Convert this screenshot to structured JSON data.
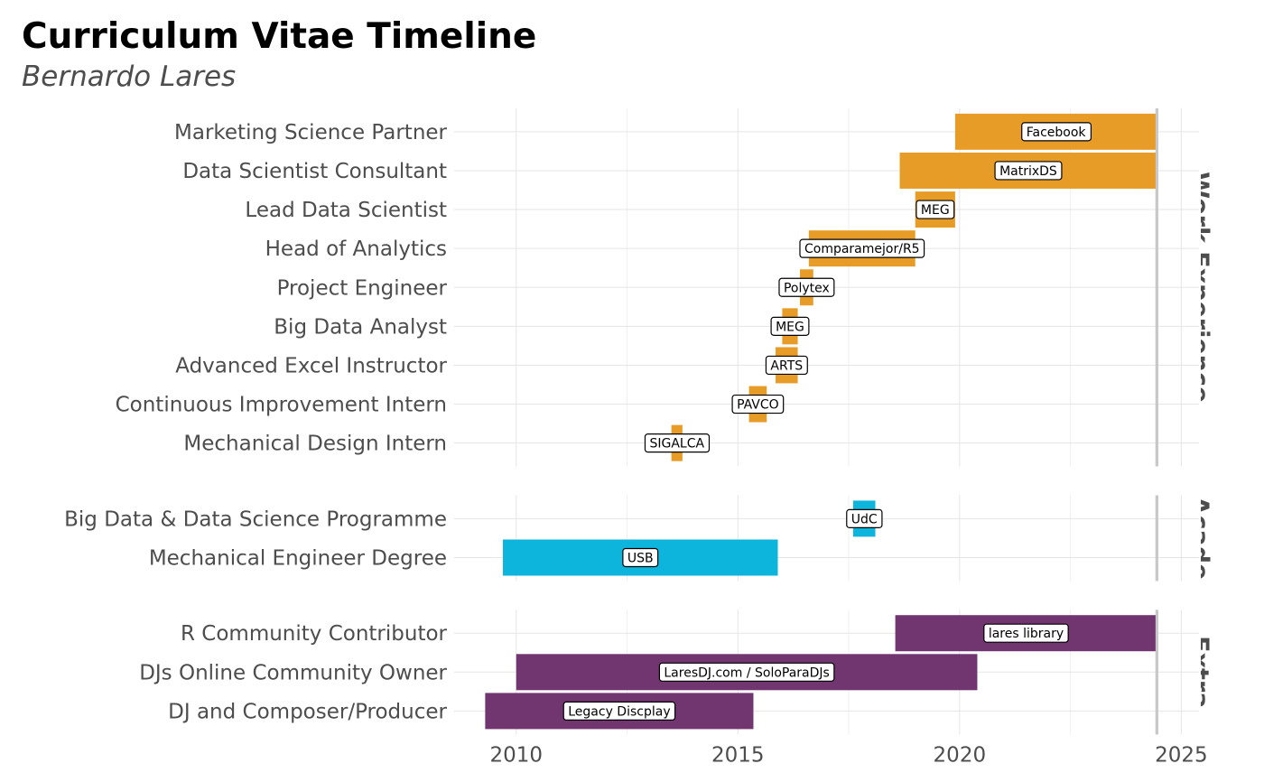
{
  "chart_data": {
    "type": "bar",
    "title": "Curriculum Vitae Timeline",
    "subtitle": "Bernardo Lares",
    "xlim": [
      2008.6,
      2025.4
    ],
    "x_ticks": [
      2010,
      2015,
      2020,
      2025
    ],
    "x_minor_ticks": [
      2012.5,
      2017.5,
      2022.5
    ],
    "today": 2024.45,
    "grid": true,
    "panels": [
      {
        "name": "Work Experience",
        "strip_label": "Work Experience",
        "color": "#E89C28",
        "items": [
          {
            "role": "Marketing Science Partner",
            "org": "Facebook",
            "start": 2019.9,
            "end": 2024.45
          },
          {
            "role": "Data Scientist Consultant",
            "org": "MatrixDS",
            "start": 2018.65,
            "end": 2024.45
          },
          {
            "role": "Lead Data Scientist",
            "org": "MEG",
            "start": 2019.0,
            "end": 2019.9
          },
          {
            "role": "Head of Analytics",
            "org": "Comparamejor/R5",
            "start": 2016.6,
            "end": 2019.0
          },
          {
            "role": "Project Engineer",
            "org": "Polytex",
            "start": 2016.4,
            "end": 2016.7
          },
          {
            "role": "Big Data Analyst",
            "org": "MEG",
            "start": 2016.0,
            "end": 2016.35
          },
          {
            "role": "Advanced Excel Instructor",
            "org": "ARTS",
            "start": 2015.85,
            "end": 2016.35
          },
          {
            "role": "Continuous Improvement Intern",
            "org": "PAVCO",
            "start": 2015.25,
            "end": 2015.65
          },
          {
            "role": "Mechanical Design Intern",
            "org": "SIGALCA",
            "start": 2013.5,
            "end": 2013.75
          }
        ]
      },
      {
        "name": "Academic",
        "strip_label": "Acade",
        "color": "#0DB4DC",
        "items": [
          {
            "role": "Big Data & Data Science Programme",
            "org": "UdC",
            "start": 2017.6,
            "end": 2018.1
          },
          {
            "role": "Mechanical Engineer Degree",
            "org": "USB",
            "start": 2009.7,
            "end": 2015.9
          }
        ]
      },
      {
        "name": "Extra",
        "strip_label": "Extra",
        "color": "#71356F",
        "items": [
          {
            "role": "R Community Contributor",
            "org": "lares library",
            "start": 2018.55,
            "end": 2024.45
          },
          {
            "role": "DJs Online Community Owner",
            "org": "LaresDJ.com / SoloParaDJs",
            "start": 2010.0,
            "end": 2020.4
          },
          {
            "role": "DJ and Composer/Producer",
            "org": "Legacy Discplay",
            "start": 2009.3,
            "end": 2015.35
          }
        ]
      }
    ]
  }
}
